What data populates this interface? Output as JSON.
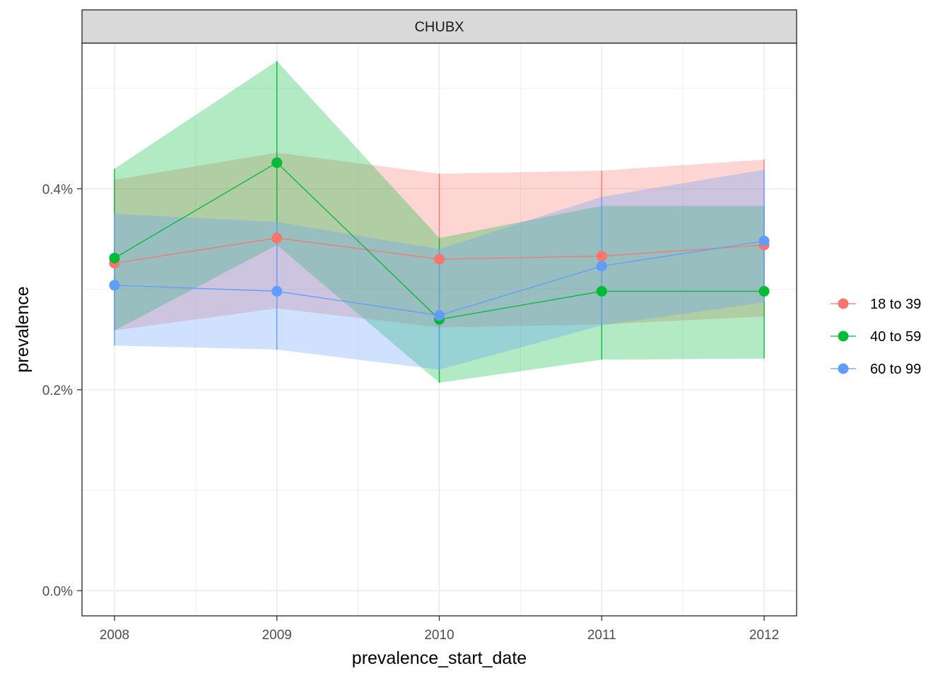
{
  "chart_data": {
    "type": "line",
    "facet_label": "CHUBX",
    "xlabel": "prevalence_start_date",
    "ylabel": "prevalence",
    "x": [
      "2008",
      "2009",
      "2010",
      "2011",
      "2012"
    ],
    "xlim": [
      2007.8,
      2012.2
    ],
    "ylim": [
      -0.00025,
      0.00545
    ],
    "y_ticks": [
      0,
      0.002,
      0.004
    ],
    "y_tick_labels": [
      "0.0%",
      "0.2%",
      "0.4%"
    ],
    "grid": true,
    "legend_position": "right",
    "series": [
      {
        "name": "18 to 39",
        "color": "#F8766D",
        "values": [
          0.00326,
          0.00351,
          0.0033,
          0.00333,
          0.00344
        ],
        "lower": [
          0.00259,
          0.00281,
          0.00262,
          0.00265,
          0.00273
        ],
        "upper": [
          0.00409,
          0.00436,
          0.00415,
          0.00418,
          0.00429
        ]
      },
      {
        "name": "40 to 59",
        "color": "#00BA38",
        "values": [
          0.00331,
          0.00426,
          0.0027,
          0.00298,
          0.00298
        ],
        "lower": [
          0.00259,
          0.00344,
          0.00207,
          0.0023,
          0.00231
        ],
        "upper": [
          0.0042,
          0.00527,
          0.00351,
          0.00383,
          0.00383
        ]
      },
      {
        "name": "60 to 99",
        "color": "#619CFF",
        "values": [
          0.00304,
          0.00298,
          0.00274,
          0.00323,
          0.00348
        ],
        "lower": [
          0.00244,
          0.0024,
          0.0022,
          0.00264,
          0.00287
        ],
        "upper": [
          0.00375,
          0.00367,
          0.0034,
          0.00392,
          0.00419
        ]
      }
    ]
  }
}
